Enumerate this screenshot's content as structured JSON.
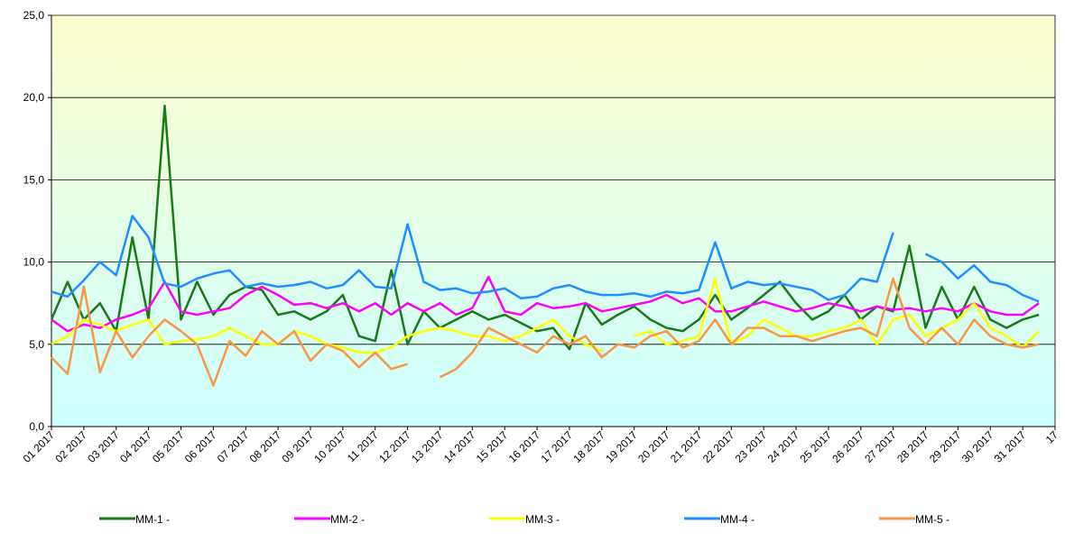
{
  "chart_data": {
    "type": "line",
    "x": [
      0,
      0.5,
      1,
      1.5,
      2,
      2.5,
      3,
      3.5,
      4,
      4.5,
      5,
      5.5,
      6,
      6.5,
      7,
      7.5,
      8,
      8.5,
      9,
      9.5,
      10,
      10.5,
      11,
      11.5,
      12,
      12.5,
      13,
      13.5,
      14,
      14.5,
      15,
      15.5,
      16,
      16.5,
      17,
      17.5,
      18,
      18.5,
      19,
      19.5,
      20,
      20.5,
      21,
      21.5,
      22,
      22.5,
      23,
      23.5,
      24,
      24.5,
      25,
      25.5,
      26,
      26.5,
      27,
      27.5,
      28,
      28.5,
      29,
      29.5,
      30,
      30.5
    ],
    "series": [
      {
        "name": "MM-1 -",
        "color": "#1a7a1a",
        "values": [
          6.5,
          8.8,
          6.5,
          7.5,
          5.8,
          11.5,
          6.5,
          19.5,
          6.5,
          8.8,
          6.8,
          8.0,
          8.5,
          8.3,
          6.8,
          7.0,
          6.5,
          7.0,
          8.0,
          5.5,
          5.2,
          9.5,
          5.0,
          7.0,
          6.0,
          6.5,
          7.0,
          6.5,
          6.8,
          6.3,
          5.8,
          6.0,
          4.7,
          7.5,
          6.2,
          6.8,
          7.3,
          6.5,
          6.0,
          5.8,
          6.5,
          8.0,
          6.5,
          7.2,
          8.0,
          8.8,
          7.5,
          6.5,
          7.0,
          8.0,
          6.5,
          7.3,
          7.0,
          11.0,
          6.0,
          8.5,
          6.5,
          8.5,
          6.5,
          6.0,
          6.5,
          6.8
        ]
      },
      {
        "name": "MM-2 -",
        "color": "#ff00ff",
        "values": [
          6.5,
          5.8,
          6.2,
          6.0,
          6.5,
          6.8,
          7.2,
          8.8,
          7.0,
          6.8,
          7.0,
          7.2,
          8.0,
          8.5,
          8.0,
          7.4,
          7.5,
          7.2,
          7.5,
          7.0,
          7.5,
          6.8,
          7.5,
          7.0,
          7.5,
          6.8,
          7.2,
          9.1,
          7.0,
          6.8,
          7.5,
          7.2,
          7.3,
          7.5,
          7.0,
          7.2,
          7.4,
          7.6,
          8.0,
          7.5,
          7.8,
          7.0,
          7.0,
          7.3,
          7.6,
          7.3,
          7.0,
          7.2,
          7.5,
          7.3,
          7.0,
          7.3,
          7.1,
          7.2,
          7.0,
          7.2,
          7.0,
          7.5,
          7.0,
          6.8,
          6.8,
          7.5
        ]
      },
      {
        "name": "MM-3 -",
        "color": "#ffff00",
        "values": [
          5.0,
          5.5,
          6.5,
          6.2,
          5.8,
          6.2,
          6.5,
          5.0,
          5.2,
          5.3,
          5.5,
          6.0,
          5.5,
          5.0,
          5.0,
          5.8,
          5.5,
          5.0,
          4.8,
          4.5,
          4.5,
          4.8,
          5.5,
          5.8,
          6.0,
          5.8,
          5.5,
          5.5,
          5.2,
          5.5,
          6.0,
          6.5,
          5.5,
          5.0,
          4.6,
          null,
          5.5,
          5.8,
          5.0,
          5.2,
          5.5,
          9.0,
          5.0,
          5.5,
          6.5,
          6.0,
          5.5,
          5.5,
          5.8,
          6.0,
          6.5,
          5.0,
          6.5,
          6.8,
          5.5,
          6.0,
          6.5,
          7.5,
          6.0,
          5.5,
          4.8,
          5.8
        ]
      },
      {
        "name": "MM-4 -",
        "color": "#1e8fff",
        "values": [
          8.2,
          7.9,
          8.9,
          10.0,
          9.2,
          12.8,
          11.5,
          8.7,
          8.5,
          9.0,
          9.3,
          9.5,
          8.5,
          8.7,
          8.5,
          8.6,
          8.8,
          8.4,
          8.6,
          9.5,
          8.5,
          8.4,
          12.3,
          8.8,
          8.3,
          8.4,
          8.1,
          8.2,
          8.4,
          7.8,
          7.9,
          8.4,
          8.6,
          8.2,
          8.0,
          8.0,
          8.1,
          7.9,
          8.2,
          8.1,
          8.3,
          11.2,
          8.4,
          8.8,
          8.6,
          8.7,
          8.5,
          8.3,
          7.7,
          8.0,
          9.0,
          8.8,
          11.8,
          null,
          10.5,
          10.0,
          9.0,
          9.8,
          8.8,
          8.6,
          8.0,
          7.6
        ]
      },
      {
        "name": "MM-5 -",
        "color": "#f79646",
        "values": [
          4.2,
          3.2,
          8.5,
          3.3,
          5.8,
          4.2,
          5.5,
          6.5,
          5.8,
          5.0,
          2.5,
          5.2,
          4.3,
          5.8,
          5.0,
          5.8,
          4.0,
          5.0,
          4.6,
          3.6,
          4.5,
          3.5,
          3.8,
          null,
          3.0,
          3.5,
          4.5,
          6.0,
          5.5,
          5.0,
          4.5,
          5.5,
          5.0,
          5.5,
          4.2,
          5.0,
          4.8,
          5.5,
          5.8,
          4.8,
          5.2,
          6.5,
          5.0,
          6.0,
          6.0,
          5.5,
          5.5,
          5.2,
          5.5,
          5.8,
          6.0,
          5.5,
          9.0,
          6.0,
          5.0,
          6.0,
          5.0,
          6.5,
          5.5,
          5.0,
          4.8,
          5.0
        ]
      }
    ],
    "xlim": [
      0,
      31
    ],
    "xticks": [
      {
        "value": 0,
        "label": "01 2017"
      },
      {
        "value": 1,
        "label": "02 2017"
      },
      {
        "value": 2,
        "label": "03 2017"
      },
      {
        "value": 3,
        "label": "04 2017"
      },
      {
        "value": 4,
        "label": "05 2017"
      },
      {
        "value": 5,
        "label": "06 2017"
      },
      {
        "value": 6,
        "label": "07 2017"
      },
      {
        "value": 7,
        "label": "08 2017"
      },
      {
        "value": 8,
        "label": "09 2017"
      },
      {
        "value": 9,
        "label": "10 2017"
      },
      {
        "value": 10,
        "label": "11 2017"
      },
      {
        "value": 11,
        "label": "12 2017"
      },
      {
        "value": 12,
        "label": "13 2017"
      },
      {
        "value": 13,
        "label": "14 2017"
      },
      {
        "value": 14,
        "label": "15 2017"
      },
      {
        "value": 15,
        "label": "16 2017"
      },
      {
        "value": 16,
        "label": "17 2017"
      },
      {
        "value": 17,
        "label": "18 2017"
      },
      {
        "value": 18,
        "label": "19 2017"
      },
      {
        "value": 19,
        "label": "20 2017"
      },
      {
        "value": 20,
        "label": "21 2017"
      },
      {
        "value": 21,
        "label": "22 2017"
      },
      {
        "value": 22,
        "label": "23 2017"
      },
      {
        "value": 23,
        "label": "24 2017"
      },
      {
        "value": 24,
        "label": "25 2017"
      },
      {
        "value": 25,
        "label": "26 2017"
      },
      {
        "value": 26,
        "label": "27 2017"
      },
      {
        "value": 27,
        "label": "28 2017"
      },
      {
        "value": 28,
        "label": "29 2017"
      },
      {
        "value": 29,
        "label": "30 2017"
      },
      {
        "value": 30,
        "label": "31 2017"
      },
      {
        "value": 31,
        "label": "17"
      }
    ],
    "ylim": [
      0,
      25
    ],
    "yticks": [
      {
        "value": 0,
        "label": "0,0"
      },
      {
        "value": 5,
        "label": "5,0"
      },
      {
        "value": 10,
        "label": "10,0"
      },
      {
        "value": 15,
        "label": "15,0"
      },
      {
        "value": 20,
        "label": "20,0"
      },
      {
        "value": 25,
        "label": "25,0"
      }
    ],
    "grid": true,
    "legend": "bottom"
  }
}
